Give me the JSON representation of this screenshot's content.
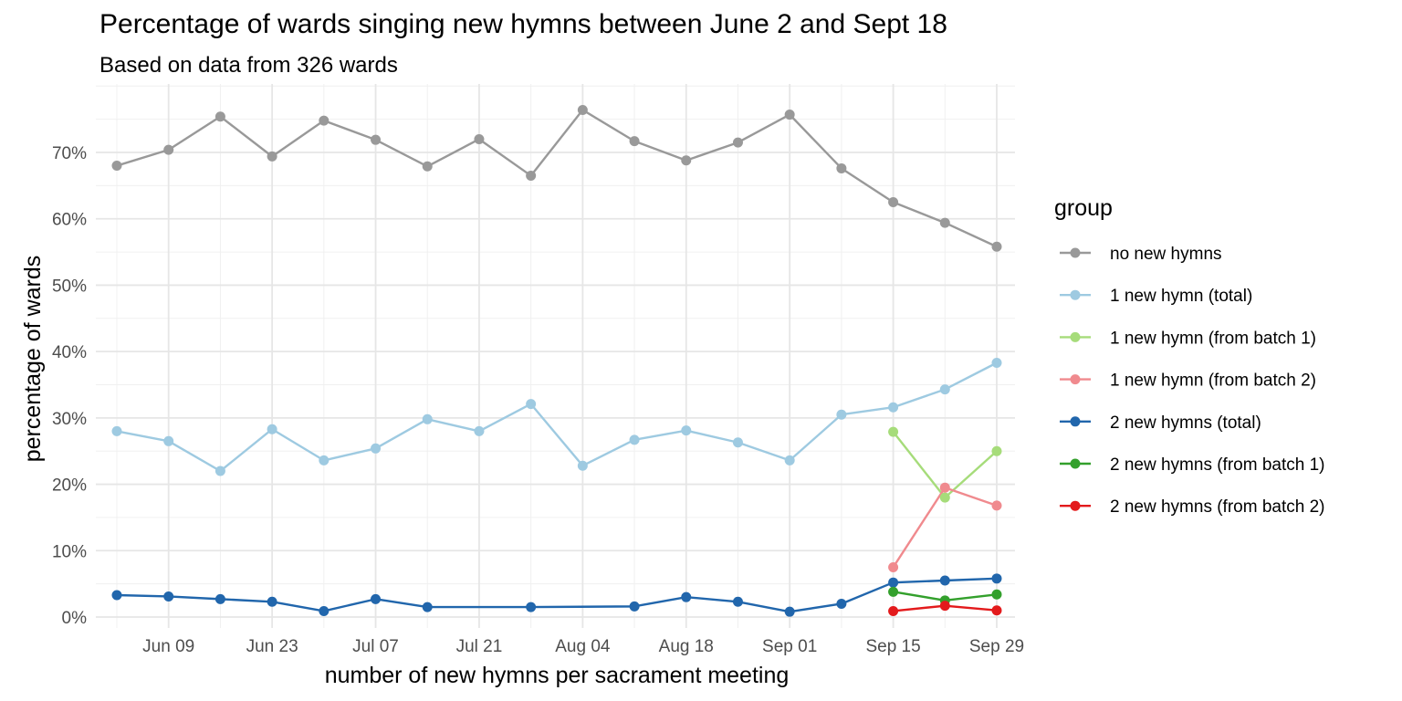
{
  "chart_data": {
    "type": "line",
    "title": "Percentage of wards singing new hymns between June 2 and Sept 18",
    "subtitle": "Based on data from 326 wards",
    "xlabel": "number of new hymns per sacrament meeting",
    "ylabel": "percentage of wards",
    "x_ticks": [
      "Jun 09",
      "Jun 23",
      "Jul 07",
      "Jul 21",
      "Aug 04",
      "Aug 18",
      "Sep 01",
      "Sep 15",
      "Sep 29"
    ],
    "y_ticks": [
      "0%",
      "10%",
      "20%",
      "30%",
      "40%",
      "50%",
      "60%",
      "70%"
    ],
    "ylim": [
      0,
      0.78
    ],
    "xlim": [
      "2024-06-02",
      "2024-09-29"
    ],
    "grid": true,
    "legend_title": "group",
    "legend_position": "right",
    "series": [
      {
        "name": "no new hymns",
        "color": "#999999",
        "points": [
          [
            "2024-06-02",
            0.68
          ],
          [
            "2024-06-09",
            0.704
          ],
          [
            "2024-06-16",
            0.754
          ],
          [
            "2024-06-23",
            0.694
          ],
          [
            "2024-06-30",
            0.748
          ],
          [
            "2024-07-07",
            0.719
          ],
          [
            "2024-07-14",
            0.679
          ],
          [
            "2024-07-21",
            0.72
          ],
          [
            "2024-07-28",
            0.665
          ],
          [
            "2024-08-04",
            0.764
          ],
          [
            "2024-08-11",
            0.717
          ],
          [
            "2024-08-18",
            0.688
          ],
          [
            "2024-08-25",
            0.715
          ],
          [
            "2024-09-01",
            0.757
          ],
          [
            "2024-09-08",
            0.676
          ],
          [
            "2024-09-15",
            0.625
          ],
          [
            "2024-09-22",
            0.594
          ],
          [
            "2024-09-29",
            0.558
          ]
        ]
      },
      {
        "name": "1 new hymn (total)",
        "color": "#9ecae1",
        "points": [
          [
            "2024-06-02",
            0.28
          ],
          [
            "2024-06-09",
            0.265
          ],
          [
            "2024-06-16",
            0.22
          ],
          [
            "2024-06-23",
            0.283
          ],
          [
            "2024-06-30",
            0.236
          ],
          [
            "2024-07-07",
            0.254
          ],
          [
            "2024-07-14",
            0.298
          ],
          [
            "2024-07-21",
            0.28
          ],
          [
            "2024-07-28",
            0.321
          ],
          [
            "2024-08-04",
            0.228
          ],
          [
            "2024-08-11",
            0.267
          ],
          [
            "2024-08-18",
            0.281
          ],
          [
            "2024-08-25",
            0.263
          ],
          [
            "2024-09-01",
            0.236
          ],
          [
            "2024-09-08",
            0.305
          ],
          [
            "2024-09-15",
            0.316
          ],
          [
            "2024-09-22",
            0.343
          ],
          [
            "2024-09-29",
            0.383
          ]
        ]
      },
      {
        "name": "1 new hymn (from batch 1)",
        "color": "#a6dc7a",
        "points": [
          [
            "2024-09-15",
            0.279
          ],
          [
            "2024-09-22",
            0.18
          ],
          [
            "2024-09-29",
            0.25
          ]
        ]
      },
      {
        "name": "1 new hymn (from batch 2)",
        "color": "#f08a8e",
        "points": [
          [
            "2024-09-15",
            0.075
          ],
          [
            "2024-09-22",
            0.195
          ],
          [
            "2024-09-29",
            0.168
          ]
        ]
      },
      {
        "name": "2 new hymns (total)",
        "color": "#2166ac",
        "points": [
          [
            "2024-06-02",
            0.033
          ],
          [
            "2024-06-09",
            0.031
          ],
          [
            "2024-06-16",
            0.027
          ],
          [
            "2024-06-23",
            0.023
          ],
          [
            "2024-06-30",
            0.009
          ],
          [
            "2024-07-07",
            0.027
          ],
          [
            "2024-07-14",
            0.015
          ],
          [
            "2024-07-28",
            0.015
          ],
          [
            "2024-08-11",
            0.016
          ],
          [
            "2024-08-18",
            0.03
          ],
          [
            "2024-08-25",
            0.023
          ],
          [
            "2024-09-01",
            0.008
          ],
          [
            "2024-09-08",
            0.02
          ],
          [
            "2024-09-15",
            0.052
          ],
          [
            "2024-09-22",
            0.055
          ],
          [
            "2024-09-29",
            0.058
          ]
        ]
      },
      {
        "name": "2 new hymns (from batch 1)",
        "color": "#33a02c",
        "points": [
          [
            "2024-09-15",
            0.038
          ],
          [
            "2024-09-22",
            0.025
          ],
          [
            "2024-09-29",
            0.034
          ]
        ]
      },
      {
        "name": "2 new hymns (from batch 2)",
        "color": "#e31a1c",
        "points": [
          [
            "2024-09-15",
            0.009
          ],
          [
            "2024-09-22",
            0.017
          ],
          [
            "2024-09-29",
            0.01
          ]
        ]
      }
    ]
  }
}
